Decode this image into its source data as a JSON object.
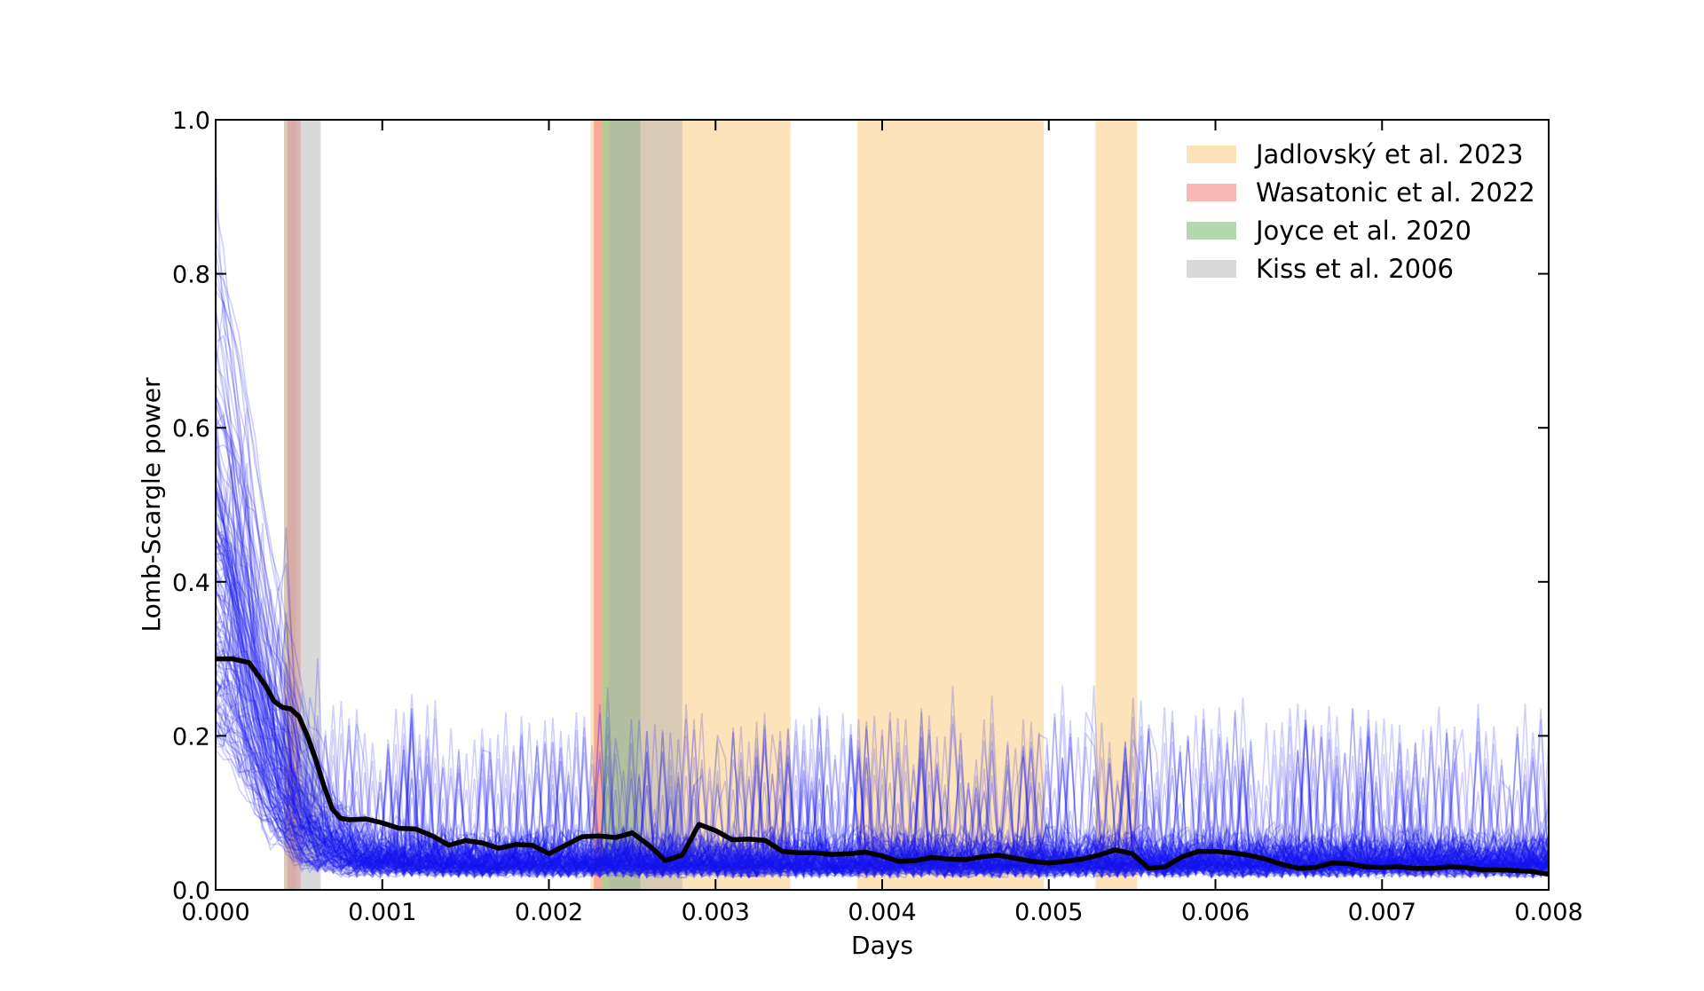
{
  "chart_data": {
    "type": "line",
    "title": "",
    "xlabel": "Days",
    "ylabel": "Lomb-Scargle power",
    "xlim": [
      0.0,
      0.008
    ],
    "ylim": [
      0.0,
      1.0
    ],
    "x_ticks": [
      "0.000",
      "0.001",
      "0.002",
      "0.003",
      "0.004",
      "0.005",
      "0.006",
      "0.007",
      "0.008"
    ],
    "y_ticks": [
      "0.0",
      "0.2",
      "0.4",
      "0.6",
      "0.8",
      "1.0"
    ],
    "grid": false,
    "legend_position": "top-right",
    "shaded_regions": [
      {
        "name": "Jadlovský et al. 2023",
        "color": "#fcd08a",
        "opacity": 0.6,
        "ranges": [
          [
            0.00041,
            0.00048
          ],
          [
            0.00225,
            0.00345
          ],
          [
            0.00385,
            0.00497
          ],
          [
            0.00528,
            0.00553
          ]
        ]
      },
      {
        "name": "Wasatonic et al. 2022",
        "color": "#f77a7a",
        "opacity": 0.55,
        "ranges": [
          [
            0.00043,
            0.00051
          ],
          [
            0.00227,
            0.00232
          ]
        ]
      },
      {
        "name": "Joyce et al. 2020",
        "color": "#74b86b",
        "opacity": 0.55,
        "ranges": [
          [
            0.00232,
            0.00255
          ]
        ]
      },
      {
        "name": "Kiss et al. 2006",
        "color": "#b3b3b3",
        "opacity": 0.5,
        "ranges": [
          [
            0.00041,
            0.00063
          ],
          [
            0.00236,
            0.0028
          ]
        ]
      }
    ],
    "individual_periodograms": {
      "description_color": "#1515ee",
      "count": 160,
      "opacity": 0.2
    },
    "series": [
      {
        "color": "#000000",
        "x": [
          0.0,
          0.0001,
          0.0002,
          0.0003,
          0.00035,
          0.0004,
          0.00045,
          0.0005,
          0.00055,
          0.0006,
          0.00065,
          0.0007,
          0.00075,
          0.0008,
          0.0009,
          0.001,
          0.0011,
          0.0012,
          0.0013,
          0.0014,
          0.0015,
          0.0016,
          0.0017,
          0.0018,
          0.0019,
          0.002,
          0.0021,
          0.0022,
          0.0023,
          0.0024,
          0.0025,
          0.0026,
          0.0027,
          0.0028,
          0.0029,
          0.003,
          0.0031,
          0.0032,
          0.0033,
          0.0034,
          0.0035,
          0.0036,
          0.0037,
          0.0038,
          0.0039,
          0.004,
          0.0041,
          0.0042,
          0.0043,
          0.0044,
          0.0045,
          0.0046,
          0.0047,
          0.0048,
          0.0049,
          0.005,
          0.0051,
          0.0052,
          0.0053,
          0.0054,
          0.0055,
          0.0056,
          0.0057,
          0.0058,
          0.0059,
          0.006,
          0.0061,
          0.0062,
          0.0063,
          0.0064,
          0.0065,
          0.0066,
          0.0067,
          0.0068,
          0.0069,
          0.007,
          0.0071,
          0.0072,
          0.0073,
          0.0074,
          0.0075,
          0.0076,
          0.0077,
          0.0078,
          0.0079,
          0.008
        ],
        "y": [
          0.3,
          0.3,
          0.295,
          0.265,
          0.245,
          0.237,
          0.235,
          0.225,
          0.2,
          0.17,
          0.135,
          0.105,
          0.093,
          0.091,
          0.092,
          0.087,
          0.08,
          0.079,
          0.07,
          0.058,
          0.064,
          0.061,
          0.054,
          0.059,
          0.058,
          0.047,
          0.058,
          0.069,
          0.07,
          0.068,
          0.074,
          0.058,
          0.038,
          0.045,
          0.085,
          0.077,
          0.065,
          0.066,
          0.064,
          0.05,
          0.048,
          0.048,
          0.046,
          0.047,
          0.049,
          0.044,
          0.037,
          0.038,
          0.042,
          0.04,
          0.039,
          0.043,
          0.045,
          0.041,
          0.037,
          0.035,
          0.037,
          0.04,
          0.045,
          0.052,
          0.047,
          0.028,
          0.03,
          0.043,
          0.05,
          0.05,
          0.048,
          0.045,
          0.04,
          0.033,
          0.028,
          0.029,
          0.035,
          0.034,
          0.03,
          0.029,
          0.03,
          0.028,
          0.028,
          0.03,
          0.029,
          0.026,
          0.026,
          0.025,
          0.024,
          0.02
        ]
      }
    ]
  }
}
